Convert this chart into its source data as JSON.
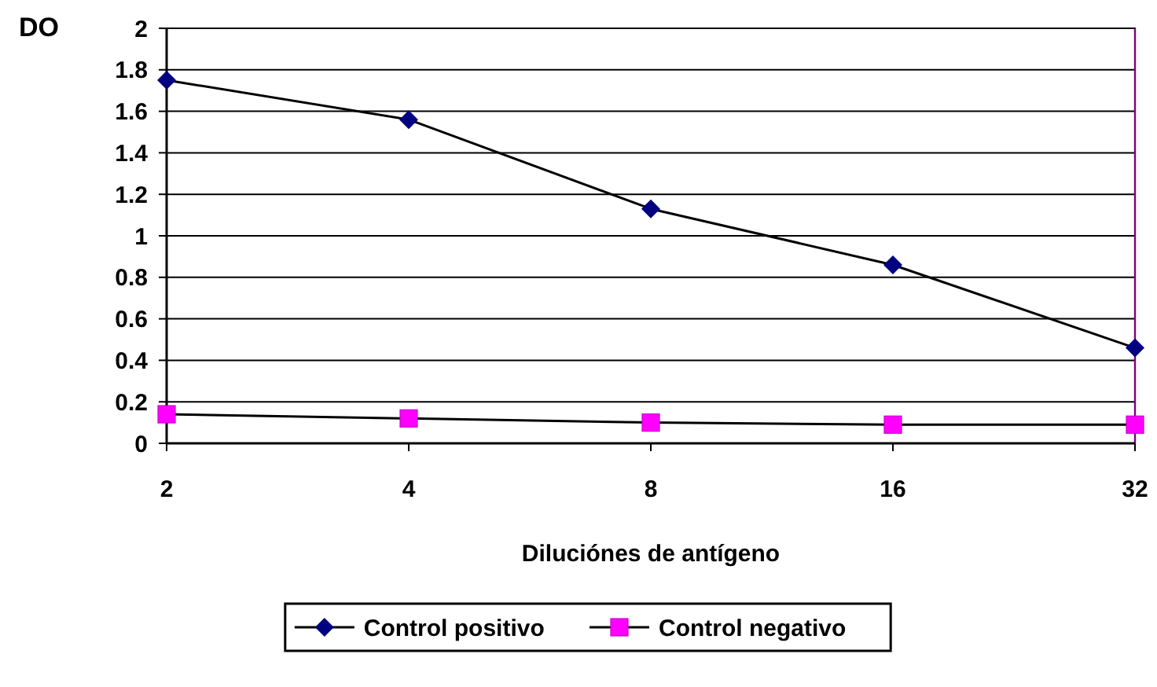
{
  "chart_data": {
    "type": "line",
    "xlabel": "Diluciónes de antígeno",
    "ylabel": "DO",
    "categories": [
      "2",
      "4",
      "8",
      "16",
      "32"
    ],
    "series": [
      {
        "name": "Control positivo",
        "color": "#000080",
        "marker": "diamond",
        "values": [
          1.75,
          1.56,
          1.13,
          0.86,
          0.46
        ]
      },
      {
        "name": "Control negativo",
        "color": "#ff00ff",
        "marker": "square",
        "values": [
          0.14,
          0.12,
          0.1,
          0.09,
          0.09
        ]
      }
    ],
    "ylim": [
      0,
      2
    ],
    "yticks": [
      0,
      0.2,
      0.4,
      0.6,
      0.8,
      1,
      1.2,
      1.4,
      1.6,
      1.8,
      2
    ],
    "grid": "y",
    "legend": "bottom",
    "line_style": "solid"
  }
}
